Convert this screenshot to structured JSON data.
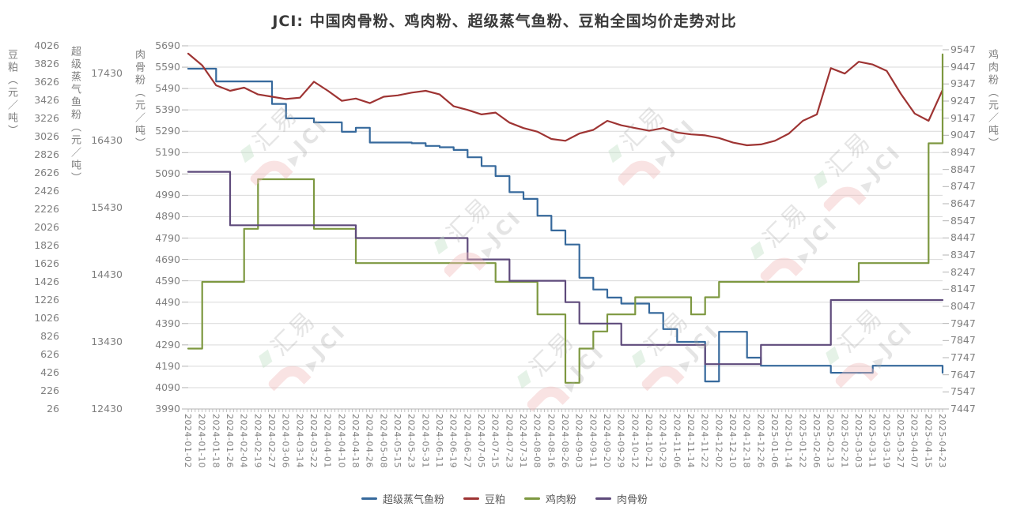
{
  "title": "JCI: 中国肉骨粉、鸡肉粉、超级蒸气鱼粉、豆粕全国均价走势对比",
  "watermark": {
    "text_cn": "汇易",
    "text_en": "JCI"
  },
  "chart_data": {
    "type": "line",
    "grid": true,
    "gridlines_axis": "meat_bone_meal",
    "legend_position": "bottom-center",
    "x": [
      "2024-01-02",
      "2024-01-10",
      "2024-01-18",
      "2024-01-26",
      "2024-02-04",
      "2024-02-19",
      "2024-02-27",
      "2024-03-06",
      "2024-03-14",
      "2024-03-22",
      "2024-04-01",
      "2024-04-10",
      "2024-04-18",
      "2024-04-26",
      "2024-05-08",
      "2024-05-15",
      "2024-05-23",
      "2024-05-31",
      "2024-06-11",
      "2024-06-19",
      "2024-06-27",
      "2024-07-05",
      "2024-07-15",
      "2024-07-23",
      "2024-07-31",
      "2024-08-08",
      "2024-08-16",
      "2024-08-26",
      "2024-09-03",
      "2024-09-11",
      "2024-09-20",
      "2024-09-29",
      "2024-10-12",
      "2024-10-21",
      "2024-10-29",
      "2024-11-06",
      "2024-11-14",
      "2024-11-22",
      "2024-12-02",
      "2024-12-10",
      "2024-12-18",
      "2024-12-26",
      "2025-01-06",
      "2025-01-14",
      "2025-01-22",
      "2025-02-06",
      "2025-02-13",
      "2025-02-21",
      "2025-03-03",
      "2025-03-11",
      "2025-03-19",
      "2025-03-27",
      "2025-04-07",
      "2025-04-15",
      "2025-04-23"
    ],
    "axes": {
      "soybean_meal": {
        "label": "豆粕（元／吨）",
        "ticks": [
          4026,
          3826,
          3626,
          3426,
          3226,
          3026,
          2826,
          2626,
          2426,
          2226,
          2026,
          1826,
          1626,
          1426,
          1226,
          1026,
          826,
          626,
          426,
          226,
          26
        ],
        "range_top": 4026,
        "range_bottom": 26
      },
      "fish_meal": {
        "label": "超级蒸气鱼粉（元／吨）",
        "ticks": [
          17430,
          16430,
          15430,
          14430,
          13430,
          12430
        ],
        "range_top": 17841,
        "range_bottom": 12430
      },
      "meat_bone_meal": {
        "label": "肉骨粉（元／吨）",
        "ticks": [
          5690,
          5590,
          5490,
          5390,
          5290,
          5190,
          5090,
          4990,
          4890,
          4790,
          4690,
          4590,
          4490,
          4390,
          4290,
          4190,
          4090,
          3990
        ],
        "range_top": 5690,
        "range_bottom": 3990
      },
      "chicken_meal": {
        "label": "鸡肉粉（元／吨）",
        "ticks": [
          9547,
          9447,
          9347,
          9247,
          9147,
          9047,
          8947,
          8847,
          8747,
          8647,
          8547,
          8447,
          8347,
          8247,
          8147,
          8047,
          7947,
          7847,
          7747,
          7647,
          7547,
          7447
        ],
        "range_top": 9570,
        "range_bottom": 7447
      }
    },
    "series": [
      {
        "key": "fish-meal",
        "name": "超级蒸气鱼粉",
        "color": "#36699c",
        "axis": "fish_meal",
        "style": "step",
        "values": [
          17500,
          17500,
          17310,
          17310,
          17310,
          17310,
          16975,
          16760,
          16760,
          16700,
          16700,
          16560,
          16620,
          16400,
          16400,
          16400,
          16390,
          16350,
          16330,
          16290,
          16180,
          16050,
          15900,
          15660,
          15560,
          15310,
          15090,
          14880,
          14385,
          14210,
          14090,
          14000,
          14000,
          13860,
          13620,
          13430,
          13430,
          12840,
          13580,
          13580,
          13195,
          13075,
          13075,
          13075,
          13075,
          13075,
          12970,
          12970,
          12970,
          13075,
          13075,
          13075,
          13075,
          13075,
          12970
        ]
      },
      {
        "key": "soybean-meal",
        "name": "豆粕",
        "color": "#9e3433",
        "axis": "soybean_meal",
        "style": "line",
        "values": [
          3940,
          3810,
          3590,
          3530,
          3565,
          3490,
          3465,
          3440,
          3455,
          3630,
          3530,
          3420,
          3445,
          3395,
          3465,
          3480,
          3510,
          3530,
          3490,
          3360,
          3320,
          3270,
          3290,
          3180,
          3120,
          3080,
          3000,
          2980,
          3060,
          3100,
          3200,
          3150,
          3120,
          3090,
          3120,
          3070,
          3050,
          3040,
          3010,
          2960,
          2930,
          2940,
          2980,
          3060,
          3200,
          3270,
          3780,
          3720,
          3850,
          3820,
          3750,
          3500,
          3280,
          3200,
          3540
        ]
      },
      {
        "key": "chicken-meal",
        "name": "鸡肉粉",
        "color": "#7d9840",
        "axis": "chicken_meal",
        "style": "step",
        "values": [
          7800,
          8190,
          8190,
          8190,
          8500,
          8790,
          8790,
          8790,
          8790,
          8500,
          8500,
          8500,
          8300,
          8300,
          8300,
          8300,
          8300,
          8300,
          8300,
          8300,
          8300,
          8300,
          8190,
          8190,
          8190,
          8000,
          8000,
          7600,
          7800,
          7900,
          8000,
          8000,
          8100,
          8100,
          8100,
          8100,
          8000,
          8100,
          8190,
          8190,
          8190,
          8190,
          8190,
          8190,
          8190,
          8190,
          8190,
          8190,
          8300,
          8300,
          8300,
          8300,
          8300,
          9000,
          9520
        ]
      },
      {
        "key": "meat-bone-meal",
        "name": "肉骨粉",
        "color": "#5e4a7b",
        "axis": "meat_bone_meal",
        "style": "step",
        "values": [
          5100,
          5100,
          5100,
          4850,
          4850,
          4850,
          4850,
          4850,
          4850,
          4850,
          4850,
          4850,
          4790,
          4790,
          4790,
          4790,
          4790,
          4790,
          4790,
          4790,
          4690,
          4690,
          4690,
          4590,
          4590,
          4590,
          4590,
          4490,
          4390,
          4390,
          4390,
          4290,
          4290,
          4290,
          4290,
          4290,
          4290,
          4200,
          4200,
          4200,
          4200,
          4290,
          4290,
          4290,
          4290,
          4290,
          4500,
          4500,
          4500,
          4500,
          4500,
          4500,
          4500,
          4500,
          4500
        ]
      }
    ]
  }
}
